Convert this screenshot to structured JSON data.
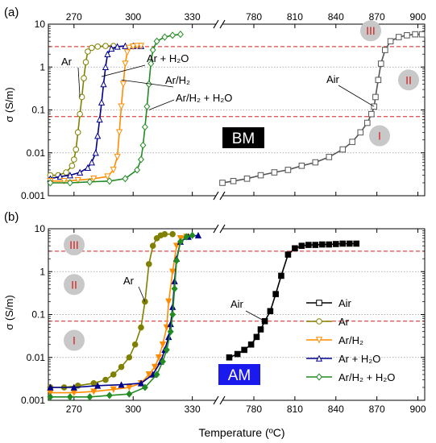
{
  "figure": {
    "xlabel": "Temperature (ºC)",
    "ylabel": "σ (S/m)"
  },
  "chart_data": [
    {
      "type": "scatter",
      "panel_label": "(a)",
      "badge": "BM",
      "badge_color": "#000000",
      "ylabel": "σ (S/m)",
      "yscale": "log",
      "ylim": [
        0.001,
        10
      ],
      "y_ticks": [
        "0.001",
        "0.01",
        "0.1",
        "1",
        "10"
      ],
      "x_axis_break": true,
      "x_segment_low": {
        "xlim": [
          257,
          342
        ],
        "ticks": [
          "270",
          "300",
          "330"
        ],
        "tick_position": "top"
      },
      "x_segment_high": {
        "xlim": [
          757,
          905
        ],
        "ticks": [
          "780",
          "810",
          "840",
          "870",
          "900"
        ],
        "tick_position": "top"
      },
      "regime_lines": [
        0.07,
        3.0
      ],
      "regime_labels": [
        "I",
        "II",
        "III"
      ],
      "annotations": [
        "Ar",
        "Ar + H₂O",
        "Ar/H₂",
        "Ar/H₂ + H₂O",
        "Air"
      ],
      "series": [
        {
          "name": "Ar",
          "color": "#808000",
          "marker": "circle-open",
          "segment": "low",
          "x": [
            258,
            262,
            266,
            269,
            270,
            271,
            272,
            273,
            274,
            275,
            276,
            277,
            279,
            282,
            286,
            290
          ],
          "y": [
            0.003,
            0.003,
            0.0035,
            0.005,
            0.007,
            0.012,
            0.03,
            0.08,
            0.2,
            0.55,
            1.3,
            2.3,
            2.8,
            3.0,
            3.1,
            3.1
          ]
        },
        {
          "name": "Ar + H₂O",
          "color": "#00008b",
          "marker": "triangle-open",
          "segment": "low",
          "x": [
            258,
            263,
            268,
            273,
            277,
            279,
            281,
            282,
            283,
            284,
            285,
            286,
            287,
            289,
            292,
            296,
            300,
            304
          ],
          "y": [
            0.0025,
            0.0028,
            0.003,
            0.0035,
            0.0045,
            0.006,
            0.01,
            0.025,
            0.06,
            0.15,
            0.4,
            1.0,
            2.0,
            2.7,
            3.0,
            3.1,
            3.1,
            3.1
          ]
        },
        {
          "name": "Ar/H₂",
          "color": "#ff8c00",
          "marker": "triangle-down-open",
          "segment": "low",
          "x": [
            258,
            265,
            272,
            280,
            287,
            290,
            292,
            293,
            294,
            295,
            296,
            297,
            298,
            300,
            302,
            304
          ],
          "y": [
            0.0022,
            0.0022,
            0.0023,
            0.0025,
            0.0028,
            0.004,
            0.008,
            0.03,
            0.12,
            0.4,
            1.2,
            2.2,
            2.8,
            3.0,
            3.1,
            3.1
          ]
        },
        {
          "name": "Ar/H₂ + H₂O",
          "color": "#228b22",
          "marker": "diamond-open",
          "segment": "low",
          "x": [
            258,
            268,
            278,
            288,
            296,
            302,
            304,
            305,
            306,
            307,
            308,
            309,
            310,
            312,
            316,
            320,
            324
          ],
          "y": [
            0.002,
            0.002,
            0.0021,
            0.0022,
            0.0025,
            0.004,
            0.007,
            0.015,
            0.04,
            0.12,
            0.4,
            1.2,
            2.5,
            4.0,
            5.0,
            5.5,
            5.8
          ]
        },
        {
          "name": "Air",
          "color": "#555555",
          "marker": "square-open",
          "segment": "high",
          "x": [
            757,
            765,
            775,
            785,
            795,
            805,
            815,
            825,
            835,
            845,
            852,
            858,
            863,
            866,
            868,
            869,
            871,
            873,
            876,
            880,
            886,
            892,
            898,
            903
          ],
          "y": [
            0.002,
            0.0022,
            0.0025,
            0.003,
            0.0035,
            0.004,
            0.005,
            0.006,
            0.008,
            0.012,
            0.018,
            0.03,
            0.05,
            0.08,
            0.12,
            0.2,
            0.5,
            1.2,
            2.5,
            4.0,
            5.0,
            5.5,
            5.8,
            5.8
          ]
        }
      ]
    },
    {
      "type": "scatter",
      "panel_label": "(b)",
      "badge": "AM",
      "badge_color": "#1a1aee",
      "ylabel": "σ (S/m)",
      "yscale": "log",
      "ylim": [
        0.001,
        10
      ],
      "y_ticks": [
        "0.001",
        "0.01",
        "0.1",
        "1",
        "10"
      ],
      "x_axis_break": true,
      "x_segment_low": {
        "xlim": [
          257,
          342
        ],
        "ticks": [
          "270",
          "300",
          "330"
        ],
        "tick_position": "bottom"
      },
      "x_segment_high": {
        "xlim": [
          757,
          905
        ],
        "ticks": [
          "780",
          "810",
          "840",
          "870",
          "900"
        ],
        "tick_position": "bottom"
      },
      "regime_lines": [
        0.07,
        3.0
      ],
      "regime_labels": [
        "I",
        "II",
        "III"
      ],
      "annotations": [
        "Ar",
        "Air"
      ],
      "legend": {
        "position": "right",
        "entries": [
          "Air",
          "Ar",
          "Ar/H₂",
          "Ar + H₂O",
          "Ar/H₂ + H₂O"
        ]
      },
      "series": [
        {
          "name": "Air",
          "color": "#000000",
          "marker": "square-filled",
          "segment": "high",
          "x": [
            762,
            768,
            773,
            778,
            782,
            785,
            788,
            792,
            796,
            800,
            805,
            810,
            815,
            820,
            825,
            830,
            835,
            840,
            845,
            850,
            855
          ],
          "y": [
            0.01,
            0.012,
            0.015,
            0.02,
            0.03,
            0.045,
            0.07,
            0.12,
            0.3,
            0.8,
            2.5,
            3.5,
            4.0,
            4.2,
            4.2,
            4.3,
            4.3,
            4.4,
            4.5,
            4.5,
            4.5
          ]
        },
        {
          "name": "Ar",
          "color": "#808000",
          "marker": "circle-filled",
          "segment": "low",
          "x": [
            258,
            265,
            272,
            280,
            286,
            290,
            294,
            298,
            301,
            304,
            306,
            308,
            310,
            312,
            314,
            316,
            320
          ],
          "y": [
            0.002,
            0.002,
            0.0022,
            0.0025,
            0.003,
            0.004,
            0.006,
            0.01,
            0.02,
            0.05,
            0.2,
            1.5,
            4.0,
            6.0,
            7.0,
            7.5,
            7.5
          ]
        },
        {
          "name": "Ar/H₂",
          "color": "#ff8c00",
          "marker": "triangle-down-filled",
          "segment": "low",
          "x": [
            258,
            270,
            280,
            290,
            298,
            304,
            308,
            311,
            313,
            315,
            317,
            318,
            320,
            322,
            324,
            327
          ],
          "y": [
            0.0015,
            0.0015,
            0.0016,
            0.0018,
            0.002,
            0.0025,
            0.004,
            0.006,
            0.01,
            0.02,
            0.05,
            0.2,
            1.0,
            4.0,
            6.0,
            6.5
          ]
        },
        {
          "name": "Ar + H₂O",
          "color": "#00008b",
          "marker": "triangle-filled",
          "segment": "low",
          "x": [
            258,
            270,
            282,
            294,
            304,
            310,
            314,
            316,
            318,
            319,
            320,
            321,
            322,
            324,
            328,
            333
          ],
          "y": [
            0.002,
            0.002,
            0.0022,
            0.0023,
            0.0025,
            0.004,
            0.008,
            0.015,
            0.03,
            0.06,
            0.15,
            0.6,
            2.0,
            5.0,
            6.5,
            7.0
          ]
        },
        {
          "name": "Ar/H₂ + H₂O",
          "color": "#228b22",
          "marker": "diamond-filled",
          "segment": "low",
          "x": [
            258,
            268,
            278,
            288,
            298,
            306,
            312,
            315,
            317,
            319,
            320,
            321,
            322,
            324,
            327,
            330
          ],
          "y": [
            0.0012,
            0.0012,
            0.0012,
            0.0013,
            0.0014,
            0.002,
            0.004,
            0.008,
            0.015,
            0.04,
            0.1,
            0.4,
            1.8,
            5.0,
            6.5,
            7.0
          ]
        }
      ]
    }
  ]
}
